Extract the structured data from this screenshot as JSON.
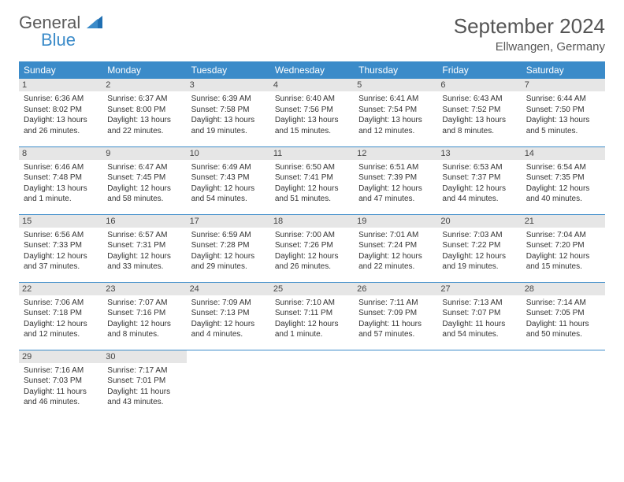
{
  "brand": {
    "line1": "General",
    "line2": "Blue"
  },
  "title": "September 2024",
  "location": "Ellwangen, Germany",
  "colors": {
    "header_bg": "#3b8bc9",
    "header_text": "#ffffff",
    "daynum_bg": "#e6e6e6",
    "border": "#3b8bc9",
    "body_text": "#333333",
    "title_text": "#555555",
    "logo_gray": "#5b5b5b",
    "logo_blue": "#3b8bc9",
    "background": "#ffffff"
  },
  "weekdays": [
    "Sunday",
    "Monday",
    "Tuesday",
    "Wednesday",
    "Thursday",
    "Friday",
    "Saturday"
  ],
  "days": [
    {
      "n": "1",
      "sr": "Sunrise: 6:36 AM",
      "ss": "Sunset: 8:02 PM",
      "dl": "Daylight: 13 hours and 26 minutes."
    },
    {
      "n": "2",
      "sr": "Sunrise: 6:37 AM",
      "ss": "Sunset: 8:00 PM",
      "dl": "Daylight: 13 hours and 22 minutes."
    },
    {
      "n": "3",
      "sr": "Sunrise: 6:39 AM",
      "ss": "Sunset: 7:58 PM",
      "dl": "Daylight: 13 hours and 19 minutes."
    },
    {
      "n": "4",
      "sr": "Sunrise: 6:40 AM",
      "ss": "Sunset: 7:56 PM",
      "dl": "Daylight: 13 hours and 15 minutes."
    },
    {
      "n": "5",
      "sr": "Sunrise: 6:41 AM",
      "ss": "Sunset: 7:54 PM",
      "dl": "Daylight: 13 hours and 12 minutes."
    },
    {
      "n": "6",
      "sr": "Sunrise: 6:43 AM",
      "ss": "Sunset: 7:52 PM",
      "dl": "Daylight: 13 hours and 8 minutes."
    },
    {
      "n": "7",
      "sr": "Sunrise: 6:44 AM",
      "ss": "Sunset: 7:50 PM",
      "dl": "Daylight: 13 hours and 5 minutes."
    },
    {
      "n": "8",
      "sr": "Sunrise: 6:46 AM",
      "ss": "Sunset: 7:48 PM",
      "dl": "Daylight: 13 hours and 1 minute."
    },
    {
      "n": "9",
      "sr": "Sunrise: 6:47 AM",
      "ss": "Sunset: 7:45 PM",
      "dl": "Daylight: 12 hours and 58 minutes."
    },
    {
      "n": "10",
      "sr": "Sunrise: 6:49 AM",
      "ss": "Sunset: 7:43 PM",
      "dl": "Daylight: 12 hours and 54 minutes."
    },
    {
      "n": "11",
      "sr": "Sunrise: 6:50 AM",
      "ss": "Sunset: 7:41 PM",
      "dl": "Daylight: 12 hours and 51 minutes."
    },
    {
      "n": "12",
      "sr": "Sunrise: 6:51 AM",
      "ss": "Sunset: 7:39 PM",
      "dl": "Daylight: 12 hours and 47 minutes."
    },
    {
      "n": "13",
      "sr": "Sunrise: 6:53 AM",
      "ss": "Sunset: 7:37 PM",
      "dl": "Daylight: 12 hours and 44 minutes."
    },
    {
      "n": "14",
      "sr": "Sunrise: 6:54 AM",
      "ss": "Sunset: 7:35 PM",
      "dl": "Daylight: 12 hours and 40 minutes."
    },
    {
      "n": "15",
      "sr": "Sunrise: 6:56 AM",
      "ss": "Sunset: 7:33 PM",
      "dl": "Daylight: 12 hours and 37 minutes."
    },
    {
      "n": "16",
      "sr": "Sunrise: 6:57 AM",
      "ss": "Sunset: 7:31 PM",
      "dl": "Daylight: 12 hours and 33 minutes."
    },
    {
      "n": "17",
      "sr": "Sunrise: 6:59 AM",
      "ss": "Sunset: 7:28 PM",
      "dl": "Daylight: 12 hours and 29 minutes."
    },
    {
      "n": "18",
      "sr": "Sunrise: 7:00 AM",
      "ss": "Sunset: 7:26 PM",
      "dl": "Daylight: 12 hours and 26 minutes."
    },
    {
      "n": "19",
      "sr": "Sunrise: 7:01 AM",
      "ss": "Sunset: 7:24 PM",
      "dl": "Daylight: 12 hours and 22 minutes."
    },
    {
      "n": "20",
      "sr": "Sunrise: 7:03 AM",
      "ss": "Sunset: 7:22 PM",
      "dl": "Daylight: 12 hours and 19 minutes."
    },
    {
      "n": "21",
      "sr": "Sunrise: 7:04 AM",
      "ss": "Sunset: 7:20 PM",
      "dl": "Daylight: 12 hours and 15 minutes."
    },
    {
      "n": "22",
      "sr": "Sunrise: 7:06 AM",
      "ss": "Sunset: 7:18 PM",
      "dl": "Daylight: 12 hours and 12 minutes."
    },
    {
      "n": "23",
      "sr": "Sunrise: 7:07 AM",
      "ss": "Sunset: 7:16 PM",
      "dl": "Daylight: 12 hours and 8 minutes."
    },
    {
      "n": "24",
      "sr": "Sunrise: 7:09 AM",
      "ss": "Sunset: 7:13 PM",
      "dl": "Daylight: 12 hours and 4 minutes."
    },
    {
      "n": "25",
      "sr": "Sunrise: 7:10 AM",
      "ss": "Sunset: 7:11 PM",
      "dl": "Daylight: 12 hours and 1 minute."
    },
    {
      "n": "26",
      "sr": "Sunrise: 7:11 AM",
      "ss": "Sunset: 7:09 PM",
      "dl": "Daylight: 11 hours and 57 minutes."
    },
    {
      "n": "27",
      "sr": "Sunrise: 7:13 AM",
      "ss": "Sunset: 7:07 PM",
      "dl": "Daylight: 11 hours and 54 minutes."
    },
    {
      "n": "28",
      "sr": "Sunrise: 7:14 AM",
      "ss": "Sunset: 7:05 PM",
      "dl": "Daylight: 11 hours and 50 minutes."
    },
    {
      "n": "29",
      "sr": "Sunrise: 7:16 AM",
      "ss": "Sunset: 7:03 PM",
      "dl": "Daylight: 11 hours and 46 minutes."
    },
    {
      "n": "30",
      "sr": "Sunrise: 7:17 AM",
      "ss": "Sunset: 7:01 PM",
      "dl": "Daylight: 11 hours and 43 minutes."
    }
  ]
}
